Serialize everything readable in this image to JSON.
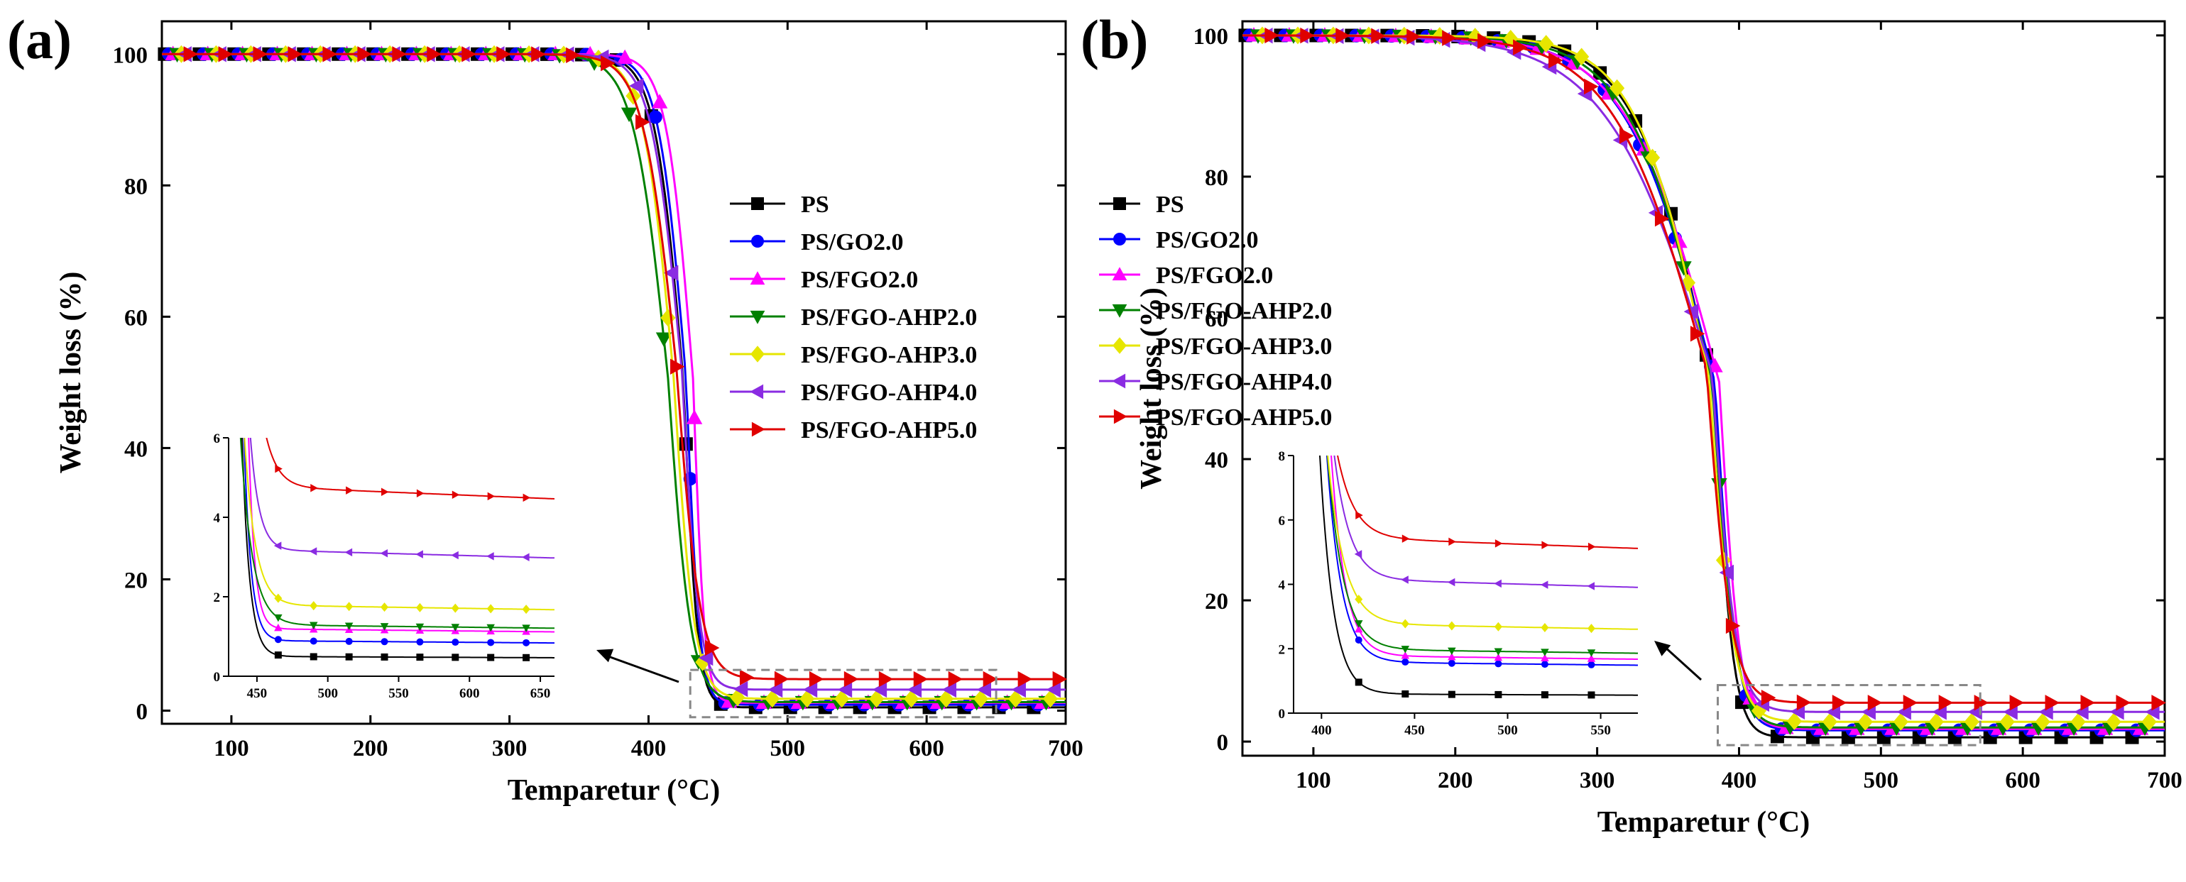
{
  "chart_data": [
    {
      "type": "line",
      "panel_label": "(a)",
      "xlabel": "Temparetur (°C)",
      "ylabel": "Weight loss (%)",
      "xlim": [
        50,
        700
      ],
      "ylim": [
        -2,
        105
      ],
      "xticks": [
        100,
        200,
        300,
        400,
        500,
        600,
        700
      ],
      "yticks": [
        0,
        20,
        40,
        60,
        80,
        100
      ],
      "legend_position": "center-right",
      "series": [
        {
          "name": "PS",
          "color": "#000000",
          "marker": "square",
          "T5": 395,
          "T50": 425,
          "T95": 440,
          "residue": 0.5
        },
        {
          "name": "PS/GO2.0",
          "color": "#0000ff",
          "marker": "circle",
          "T5": 398,
          "T50": 427,
          "T95": 441,
          "residue": 0.9
        },
        {
          "name": "PS/FGO2.0",
          "color": "#ff00ff",
          "marker": "triangle-up",
          "T5": 404,
          "T50": 432,
          "T95": 444,
          "residue": 1.2
        },
        {
          "name": "PS/FGO-AHP2.0",
          "color": "#008000",
          "marker": "triangle-down",
          "T5": 378,
          "T50": 414,
          "T95": 438,
          "residue": 1.3
        },
        {
          "name": "PS/FGO-AHP3.0",
          "color": "#e6e600",
          "marker": "diamond",
          "T5": 386,
          "T50": 418,
          "T95": 440,
          "residue": 1.8
        },
        {
          "name": "PS/FGO-AHP4.0",
          "color": "#8a2be2",
          "marker": "triangle-left",
          "T5": 392,
          "T50": 424,
          "T95": 442,
          "residue": 3.2
        },
        {
          "name": "PS/FGO-AHP5.0",
          "color": "#e00000",
          "marker": "triangle-right",
          "T5": 385,
          "T50": 420,
          "T95": 445,
          "residue": 4.8
        }
      ],
      "inset": {
        "xlim": [
          430,
          660
        ],
        "ylim": [
          0,
          6
        ],
        "xticks": [
          450,
          500,
          550,
          600,
          650
        ],
        "yticks": [
          0,
          2,
          4,
          6
        ],
        "residues": [
          0.5,
          0.9,
          1.2,
          1.3,
          1.8,
          3.2,
          4.8
        ]
      }
    },
    {
      "type": "line",
      "panel_label": "(b)",
      "xlabel": "Temparetur (°C)",
      "ylabel": "Weight loss (%)",
      "xlim": [
        50,
        700
      ],
      "ylim": [
        -2,
        102
      ],
      "xticks": [
        100,
        200,
        300,
        400,
        500,
        600,
        700
      ],
      "yticks": [
        0,
        20,
        40,
        60,
        80,
        100
      ],
      "legend_position": "center-right",
      "series": [
        {
          "name": "PS",
          "color": "#000000",
          "marker": "square",
          "T5": 300,
          "T50": 382,
          "T95": 402,
          "residue": 0.6
        },
        {
          "name": "PS/GO2.0",
          "color": "#0000ff",
          "marker": "circle",
          "T5": 290,
          "T50": 383,
          "T95": 405,
          "residue": 1.6
        },
        {
          "name": "PS/FGO2.0",
          "color": "#ff00ff",
          "marker": "triangle-up",
          "T5": 290,
          "T50": 386,
          "T95": 407,
          "residue": 1.8
        },
        {
          "name": "PS/FGO-AHP2.0",
          "color": "#008000",
          "marker": "triangle-down",
          "T5": 295,
          "T50": 381,
          "T95": 405,
          "residue": 2.0
        },
        {
          "name": "PS/FGO-AHP3.0",
          "color": "#e6e600",
          "marker": "diamond",
          "T5": 302,
          "T50": 379,
          "T95": 404,
          "residue": 2.8
        },
        {
          "name": "PS/FGO-AHP4.0",
          "color": "#8a2be2",
          "marker": "triangle-left",
          "T5": 270,
          "T50": 381,
          "T95": 405,
          "residue": 4.2
        },
        {
          "name": "PS/FGO-AHP5.0",
          "color": "#e00000",
          "marker": "triangle-right",
          "T5": 280,
          "T50": 377,
          "T95": 403,
          "residue": 5.5
        }
      ],
      "inset": {
        "xlim": [
          385,
          570
        ],
        "ylim": [
          0,
          8
        ],
        "xticks": [
          400,
          450,
          500,
          550
        ],
        "yticks": [
          0,
          2,
          4,
          6,
          8
        ],
        "residues": [
          0.6,
          1.6,
          1.8,
          2.0,
          2.8,
          4.2,
          5.5
        ]
      }
    }
  ]
}
